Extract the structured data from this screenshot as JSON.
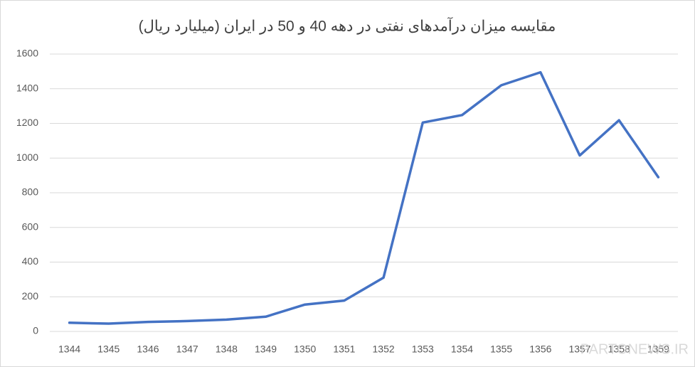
{
  "chart_data": {
    "type": "line",
    "title": "مقایسه میزان درآمدهای نفتی در دهه 40 و 50 در ایران (میلیارد ریال)",
    "categories": [
      "1344",
      "1345",
      "1346",
      "1347",
      "1348",
      "1349",
      "1350",
      "1351",
      "1352",
      "1353",
      "1354",
      "1355",
      "1356",
      "1357",
      "1358",
      "1359"
    ],
    "series": [
      {
        "color": "#4472c4",
        "values": [
          50,
          45,
          55,
          60,
          68,
          85,
          155,
          178,
          310,
          1205,
          1248,
          1420,
          1495,
          1015,
          1218,
          890
        ]
      }
    ],
    "ylim": [
      0,
      1600
    ],
    "yticks": [
      0,
      200,
      400,
      600,
      800,
      1000,
      1200,
      1400,
      1600
    ],
    "grid": true,
    "watermark": "PARTONEWS.IR"
  }
}
